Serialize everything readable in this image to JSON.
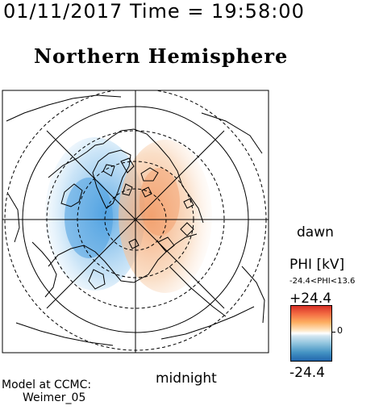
{
  "header": {
    "date_time": "01/11/2017 Time = 19:58:00"
  },
  "map": {
    "title": "Northern Hemisphere",
    "label_right": "dawn",
    "label_bottom": "midnight",
    "projection": "polar-stereographic",
    "hemisphere": "north",
    "fill_positive_color": "#f29a63",
    "fill_negative_color": "#4a9fe0"
  },
  "legend": {
    "title": "PHI [kV]",
    "range_text": "-24.4<PHI<13.6",
    "max_label": "+24.4",
    "min_label": "-24.4",
    "zero_label": "0",
    "colors": [
      "#d73027",
      "#fdae61",
      "#ffffff",
      "#92c5de",
      "#2166ac"
    ]
  },
  "credit": {
    "line1": "Model at CCMC:",
    "line2": "Weimer_05"
  }
}
